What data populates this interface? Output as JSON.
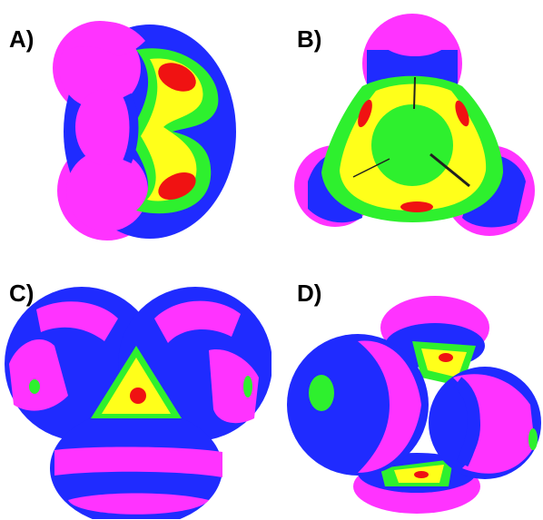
{
  "figure": {
    "panels": [
      {
        "label": "A)"
      },
      {
        "label": "B)"
      },
      {
        "label": "C)"
      },
      {
        "label": "D)"
      }
    ],
    "colors": {
      "magenta": "#ff33ff",
      "blue": "#1f2bff",
      "green": "#2ef02e",
      "yellow": "#ffff1a",
      "red": "#f01212",
      "darkline": "#202020"
    }
  }
}
